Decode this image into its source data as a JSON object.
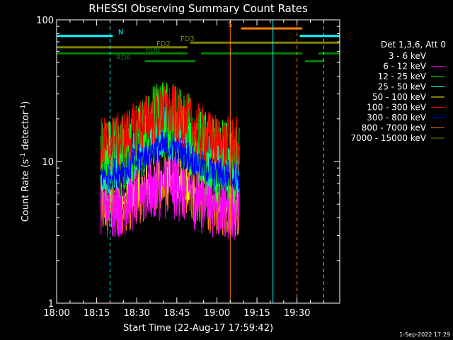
{
  "chart_data": {
    "type": "line",
    "title": "RHESSI Observing Summary Count Rates",
    "xlabel": "Start Time (22-Aug-17 17:59:42)",
    "ylabel_main": "Count Rate (s",
    "ylabel_sup1": "-1",
    "ylabel_mid": " detector",
    "ylabel_sup2": "-1",
    "ylabel_end": ")",
    "yscale": "log",
    "ylim": [
      1,
      100
    ],
    "xlim_minutes": [
      0,
      106
    ],
    "x_ticks": [
      {
        "m": 0,
        "label": "18:00"
      },
      {
        "m": 15,
        "label": "18:15"
      },
      {
        "m": 30,
        "label": "18:30"
      },
      {
        "m": 45,
        "label": "18:45"
      },
      {
        "m": 60,
        "label": "19:00"
      },
      {
        "m": 75,
        "label": "19:15"
      },
      {
        "m": 90,
        "label": "19:30"
      }
    ],
    "y_ticks": [
      {
        "v": 1,
        "label": "1"
      },
      {
        "v": 10,
        "label": "10"
      },
      {
        "v": 100,
        "label": "100"
      }
    ],
    "legend_title": "Det 1,3,6, Att 0",
    "legend_placement": "right",
    "series": [
      {
        "name": "3 - 6 keV",
        "color": "#000000",
        "base": 9.5,
        "noise": 1.8,
        "peak": 1.5
      },
      {
        "name": "6 - 12 keV",
        "color": "#ff00ff",
        "base": 5.5,
        "noise": 2.0,
        "peak": 1.4
      },
      {
        "name": "12 - 25 keV",
        "color": "#00ff00",
        "base": 9.5,
        "noise": 2.0,
        "peak": 2.0
      },
      {
        "name": "25 - 50 keV",
        "color": "#00ffff",
        "base": 9.0,
        "noise": 1.6,
        "peak": 1.8
      },
      {
        "name": "50 - 100 keV",
        "color": "#ffff00",
        "base": 6.8,
        "noise": 1.6,
        "peak": 1.3
      },
      {
        "name": "100 - 300 keV",
        "color": "#ff0000",
        "base": 13.0,
        "noise": 1.6,
        "peak": 1.7
      },
      {
        "name": "300 - 800 keV",
        "color": "#0000ff",
        "base": 8.0,
        "noise": 1.3,
        "peak": 1.6
      },
      {
        "name": "800 - 7000 keV",
        "color": "#ff8000",
        "base": 4.6,
        "noise": 1.6,
        "peak": 1.5
      },
      {
        "name": "7000 - 15000 keV",
        "color": "#808000",
        "base": 6.0,
        "noise": 1.4,
        "peak": 1.3
      }
    ],
    "data_window_minutes": [
      16.5,
      68.5
    ],
    "flags": [
      {
        "label": "N",
        "color": "#00ffff",
        "y": 77,
        "segments": [
          [
            0,
            21
          ],
          [
            91,
            114
          ]
        ],
        "label_at": 24
      },
      {
        "label": "S",
        "color": "#ff8000",
        "y": 87,
        "segments": [
          [
            69,
            92
          ]
        ],
        "label_at": 65
      },
      {
        "label": "FD2",
        "color": "#808000",
        "y": 64,
        "segments": [
          [
            0,
            49
          ]
        ],
        "label_at": 40
      },
      {
        "label": "FD3",
        "color": "#808000",
        "y": 69,
        "segments": [
          [
            50,
            114
          ]
        ],
        "label_at": 49
      },
      {
        "label": "RD0",
        "color": "#008000",
        "y": 58,
        "segments": [
          [
            0,
            49
          ],
          [
            54,
            92
          ],
          [
            98,
            114
          ]
        ],
        "label_at": 36
      },
      {
        "label": "RD6",
        "color": "#008000",
        "y": 51,
        "segments": [
          [
            33,
            52
          ],
          [
            93,
            100
          ]
        ],
        "label_at": 25
      }
    ],
    "vlines": [
      {
        "m": 0,
        "color": "#00ffff",
        "style": "solid"
      },
      {
        "m": 20,
        "color": "#00ffff",
        "style": "dashed"
      },
      {
        "m": 65,
        "color": "#ff8000",
        "style": "solid"
      },
      {
        "m": 81,
        "color": "#00ffff",
        "style": "solid"
      },
      {
        "m": 90,
        "color": "#ff8000",
        "style": "dashed"
      },
      {
        "m": 100,
        "color": "#00ffff",
        "style": "dashed"
      }
    ]
  },
  "footer_date": "1-Sep-2022 17:29"
}
